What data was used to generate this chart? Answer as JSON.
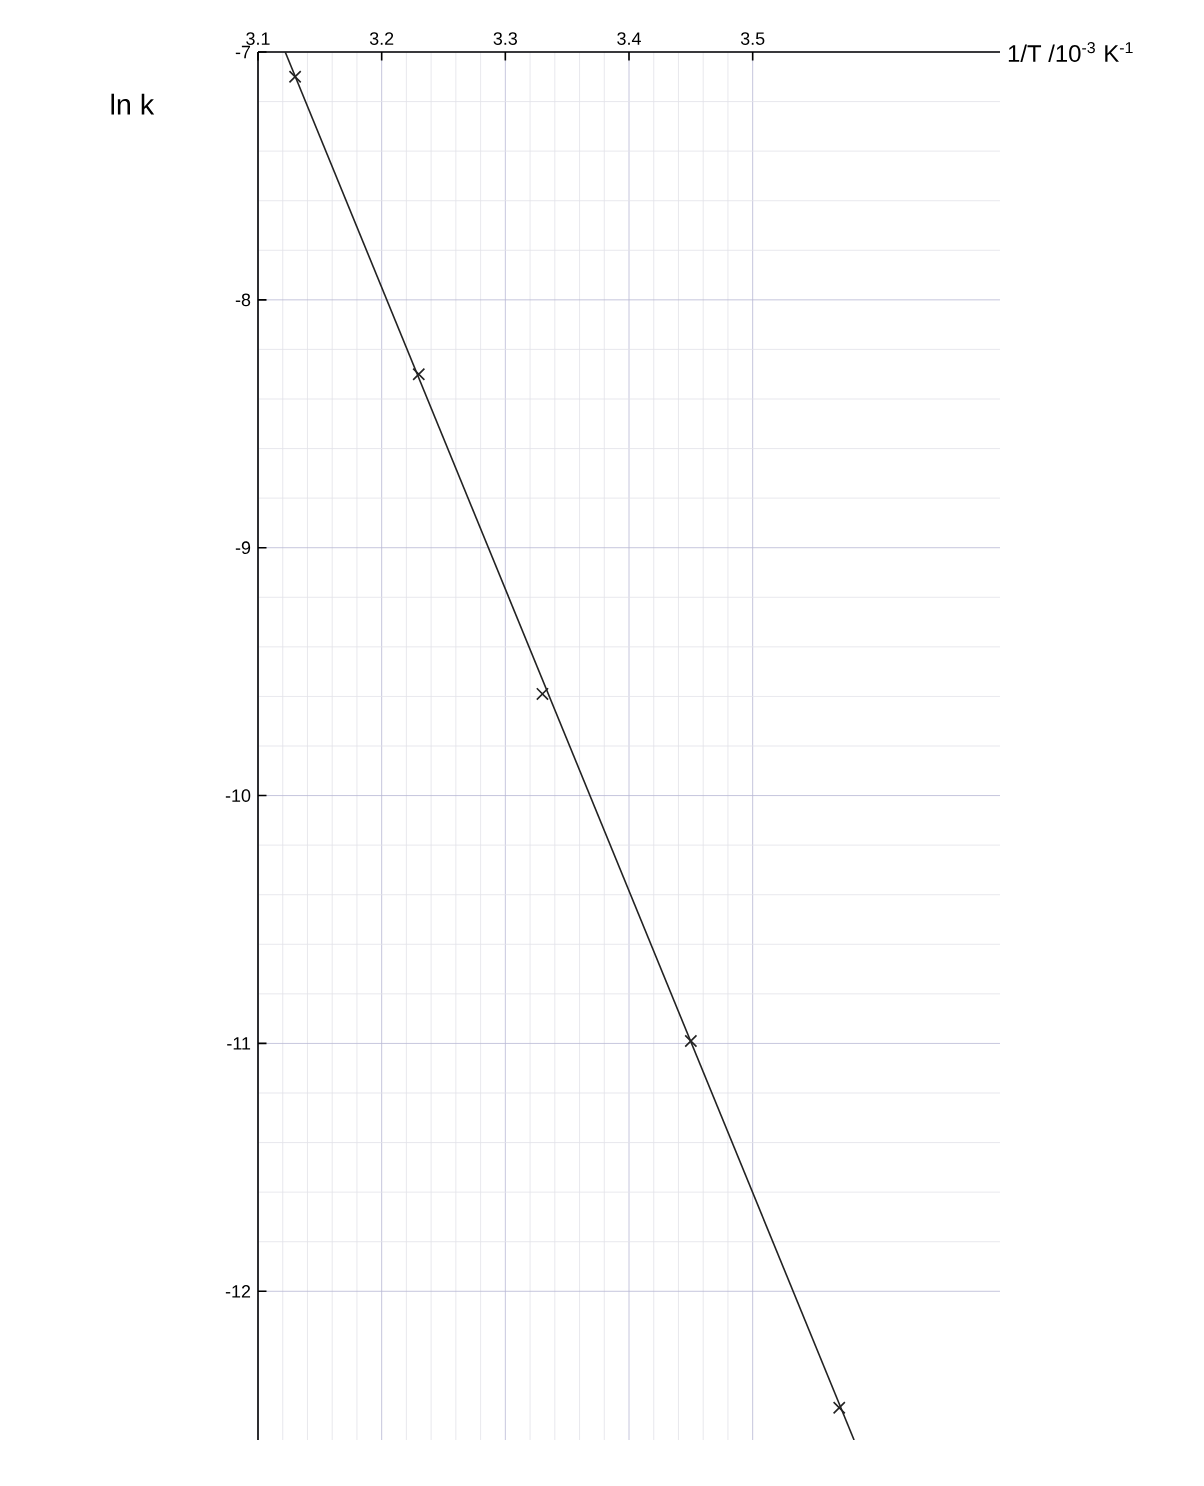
{
  "chart_data": {
    "type": "scatter",
    "xlabel": "1/T /10$^{-3}$ K$^{-1}$",
    "ylabel": "ln k",
    "series": [
      {
        "color": "#222222",
        "marker": "cross",
        "x": [
          3.13,
          3.23,
          3.33,
          3.45,
          3.57
        ],
        "values": [
          -7.1,
          -8.3,
          -9.59,
          -10.99,
          -12.47
        ]
      },
      {
        "type": "line",
        "color": "#222222",
        "line_style": "solid",
        "x": [
          3.122,
          3.582
        ],
        "values": [
          -7.0,
          -12.6
        ]
      }
    ],
    "xlim": [
      3.1,
      3.7
    ],
    "ylim": [
      -12.6,
      -7
    ],
    "xticks": [
      3.1,
      3.2,
      3.3,
      3.4,
      3.5
    ],
    "yticks": [
      -7,
      -8,
      -9,
      -10,
      -11,
      -12
    ],
    "grid": true
  }
}
